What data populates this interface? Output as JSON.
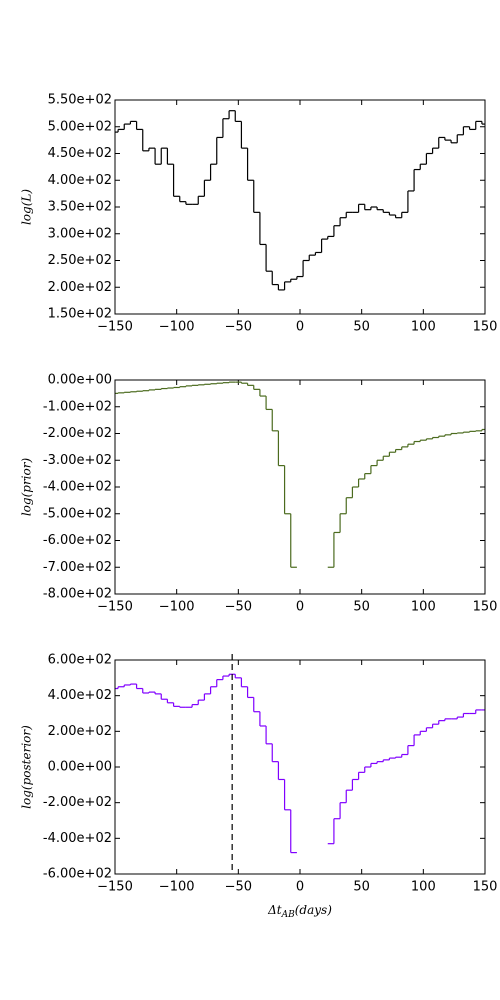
{
  "chart_data": [
    {
      "type": "step",
      "ylabel": "log(L)",
      "color": "#000000",
      "x": [
        -150,
        -145,
        -140,
        -135,
        -130,
        -125,
        -120,
        -115,
        -110,
        -105,
        -100,
        -95,
        -90,
        -85,
        -80,
        -75,
        -70,
        -65,
        -60,
        -55,
        -50,
        -45,
        -40,
        -35,
        -30,
        -25,
        -20,
        -15,
        -10,
        -5,
        0,
        5,
        10,
        15,
        20,
        25,
        30,
        35,
        40,
        45,
        50,
        55,
        60,
        65,
        70,
        75,
        80,
        85,
        90,
        95,
        100,
        105,
        110,
        115,
        120,
        125,
        130,
        135,
        140,
        145,
        150
      ],
      "values": [
        490,
        495,
        505,
        510,
        495,
        455,
        460,
        430,
        460,
        430,
        370,
        360,
        355,
        355,
        370,
        400,
        430,
        480,
        515,
        530,
        510,
        460,
        400,
        340,
        280,
        230,
        205,
        195,
        210,
        215,
        220,
        250,
        260,
        265,
        290,
        295,
        315,
        330,
        340,
        340,
        355,
        345,
        350,
        345,
        340,
        335,
        330,
        340,
        380,
        420,
        430,
        450,
        460,
        480,
        475,
        470,
        485,
        500,
        495,
        510,
        505
      ],
      "xlim": [
        -150,
        150
      ],
      "xticks": [
        {
          "value": -150,
          "label": "−150"
        },
        {
          "value": -100,
          "label": "−100"
        },
        {
          "value": -50,
          "label": "−50"
        },
        0,
        50,
        100,
        150
      ],
      "ylim": [
        150,
        550
      ],
      "yticks": [
        {
          "value": 150,
          "label": "1.50e+02"
        },
        {
          "value": 200,
          "label": "2.00e+02"
        },
        {
          "value": 250,
          "label": "2.50e+02"
        },
        {
          "value": 300,
          "label": "3.00e+02"
        },
        {
          "value": 350,
          "label": "3.50e+02"
        },
        {
          "value": 400,
          "label": "4.00e+02"
        },
        {
          "value": 450,
          "label": "4.50e+02"
        },
        {
          "value": 500,
          "label": "5.00e+02"
        },
        {
          "value": 550,
          "label": "5.50e+02"
        }
      ]
    },
    {
      "type": "step",
      "ylabel": "log(prior)",
      "color": "#4b6b1e",
      "x": [
        -150,
        -145,
        -140,
        -135,
        -130,
        -125,
        -120,
        -115,
        -110,
        -105,
        -100,
        -95,
        -90,
        -85,
        -80,
        -75,
        -70,
        -65,
        -60,
        -55,
        -50,
        -45,
        -40,
        -35,
        -30,
        -25,
        -20,
        -15,
        -10,
        -5,
        0,
        5,
        10,
        15,
        20,
        25,
        30,
        35,
        40,
        45,
        50,
        55,
        60,
        65,
        70,
        75,
        80,
        85,
        90,
        95,
        100,
        105,
        110,
        115,
        120,
        125,
        130,
        135,
        140,
        145,
        150
      ],
      "values": [
        -50,
        -48,
        -46,
        -44,
        -42,
        -40,
        -37,
        -35,
        -32,
        -30,
        -28,
        -25,
        -22,
        -20,
        -18,
        -16,
        -14,
        -12,
        -10,
        -8,
        -8,
        -12,
        -20,
        -35,
        -60,
        -110,
        -190,
        -320,
        -500,
        -700,
        null,
        null,
        null,
        null,
        null,
        -700,
        -570,
        -500,
        -440,
        -400,
        -370,
        -350,
        -320,
        -300,
        -285,
        -270,
        -260,
        -250,
        -240,
        -230,
        -225,
        -220,
        -215,
        -210,
        -205,
        -200,
        -198,
        -195,
        -192,
        -190,
        -185
      ],
      "xlim": [
        -150,
        150
      ],
      "xticks": [
        {
          "value": -150,
          "label": "−150"
        },
        {
          "value": -100,
          "label": "−100"
        },
        {
          "value": -50,
          "label": "−50"
        },
        0,
        50,
        100,
        150
      ],
      "ylim": [
        -800,
        0
      ],
      "yticks": [
        {
          "value": -800,
          "label": "-8.00e+02"
        },
        {
          "value": -700,
          "label": "-7.00e+02"
        },
        {
          "value": -600,
          "label": "-6.00e+02"
        },
        {
          "value": -500,
          "label": "-5.00e+02"
        },
        {
          "value": -400,
          "label": "-4.00e+02"
        },
        {
          "value": -300,
          "label": "-3.00e+02"
        },
        {
          "value": -200,
          "label": "-2.00e+02"
        },
        {
          "value": -100,
          "label": "-1.00e+02"
        },
        {
          "value": 0,
          "label": "0.00e+00"
        }
      ]
    },
    {
      "type": "step",
      "ylabel": "log(posterior)",
      "color": "#8000ff",
      "vline": -55,
      "xlabel": [
        "Δt",
        "AB",
        "(days)"
      ],
      "x": [
        -150,
        -145,
        -140,
        -135,
        -130,
        -125,
        -120,
        -115,
        -110,
        -105,
        -100,
        -95,
        -90,
        -85,
        -80,
        -75,
        -70,
        -65,
        -60,
        -55,
        -50,
        -45,
        -40,
        -35,
        -30,
        -25,
        -20,
        -15,
        -10,
        -5,
        0,
        5,
        10,
        15,
        20,
        25,
        30,
        35,
        40,
        45,
        50,
        55,
        60,
        65,
        70,
        75,
        80,
        85,
        90,
        95,
        100,
        105,
        110,
        115,
        120,
        125,
        130,
        135,
        140,
        145,
        150
      ],
      "values": [
        440,
        450,
        460,
        465,
        440,
        415,
        420,
        410,
        380,
        360,
        340,
        335,
        335,
        350,
        375,
        410,
        450,
        490,
        510,
        520,
        500,
        450,
        390,
        310,
        230,
        130,
        30,
        -70,
        -240,
        -480,
        null,
        null,
        null,
        null,
        null,
        -430,
        -290,
        -200,
        -130,
        -70,
        -30,
        0,
        20,
        30,
        40,
        50,
        55,
        70,
        120,
        180,
        200,
        220,
        240,
        260,
        270,
        270,
        280,
        300,
        300,
        320,
        320
      ],
      "xlim": [
        -150,
        150
      ],
      "xticks": [
        {
          "value": -150,
          "label": "−150"
        },
        {
          "value": -100,
          "label": "−100"
        },
        {
          "value": -50,
          "label": "−50"
        },
        0,
        50,
        100,
        150
      ],
      "ylim": [
        -600,
        600
      ],
      "yticks": [
        {
          "value": -600,
          "label": "-6.00e+02"
        },
        {
          "value": -400,
          "label": "-4.00e+02"
        },
        {
          "value": -200,
          "label": "-2.00e+02"
        },
        {
          "value": 0,
          "label": "0.00e+00"
        },
        {
          "value": 200,
          "label": "2.00e+02"
        },
        {
          "value": 400,
          "label": "4.00e+02"
        },
        {
          "value": 600,
          "label": "6.00e+02"
        }
      ]
    }
  ]
}
